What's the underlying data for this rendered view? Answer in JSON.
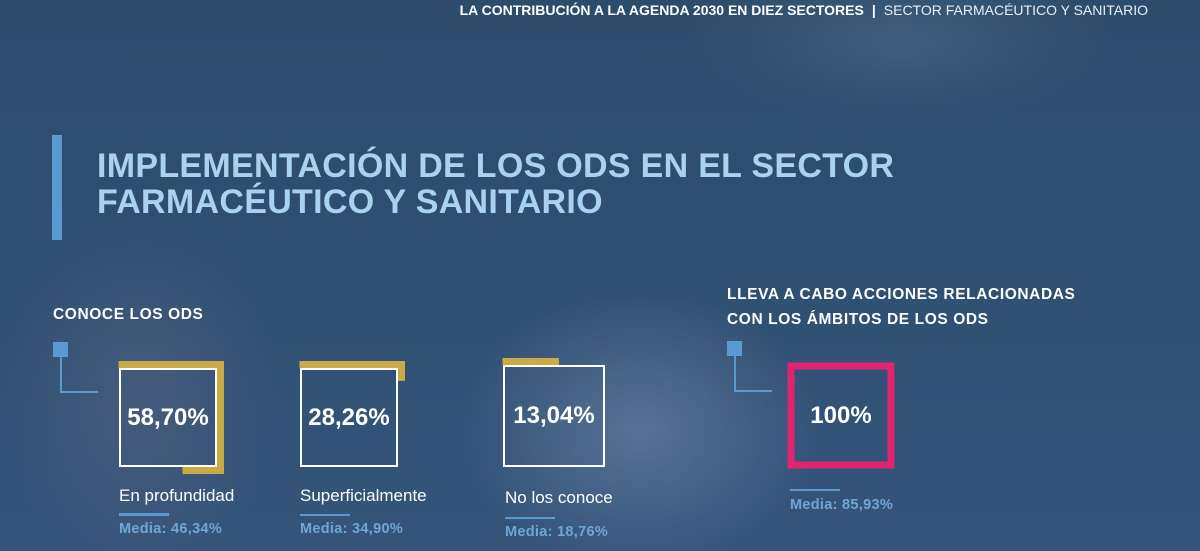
{
  "header": {
    "title": "LA CONTRIBUCIÓN A LA AGENDA 2030 EN DIEZ SECTORES",
    "separator": "|",
    "section": "SECTOR FARMACÉUTICO Y SANITARIO"
  },
  "page_title": {
    "line1": "IMPLEMENTACIÓN DE LOS ODS EN EL SECTOR",
    "line2": "FARMACÉUTICO Y SANITARIO"
  },
  "colors": {
    "accent_blue": "#5b9ad0",
    "title_blue": "#a9d2ec",
    "gold": "#c9aa45",
    "pink": "#e0246f"
  },
  "knows_ods": {
    "heading": "CONOCE LOS ODS",
    "items": [
      {
        "value": "58,70%",
        "percent": 58.7,
        "label": "En profundidad",
        "media": "Media: 46,34%"
      },
      {
        "value": "28,26%",
        "percent": 28.26,
        "label": "Superficialmente",
        "media": "Media: 34,90%"
      },
      {
        "value": "13,04%",
        "percent": 13.04,
        "label": "No los conoce",
        "media": "Media: 18,76%"
      }
    ]
  },
  "actions_ods": {
    "heading_line1": "LLEVA A CABO ACCIONES RELACIONADAS",
    "heading_line2": "CON LOS ÁMBITOS DE LOS ODS",
    "value": "100%",
    "percent": 100,
    "media": "Media: 85,93%"
  }
}
